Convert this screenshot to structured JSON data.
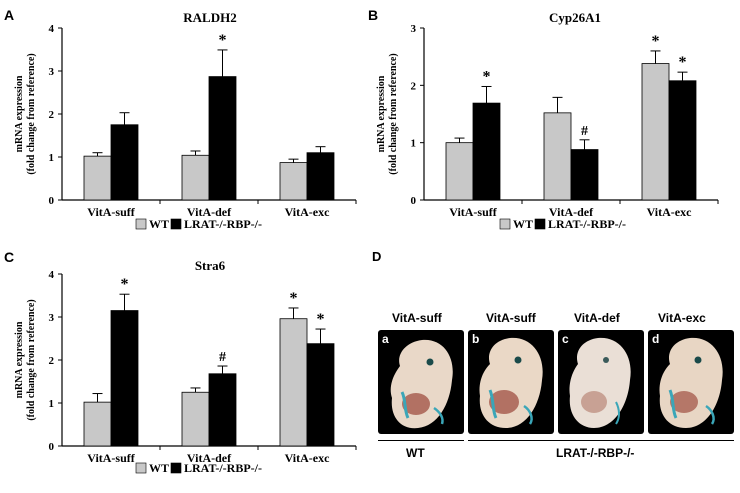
{
  "panels": [
    {
      "letter": "A"
    },
    {
      "letter": "B"
    },
    {
      "letter": "C"
    },
    {
      "letter": "D"
    }
  ],
  "chart_data": [
    {
      "type": "bar",
      "panel": "A",
      "title": "RALDH2",
      "ylabel": "mRNA expression",
      "ylabel2": "(fold change from reference)",
      "categories": [
        "VitA-suff",
        "VitA-def",
        "VitA-exc"
      ],
      "ylim": [
        0,
        4
      ],
      "yticks": [
        "0",
        "1",
        "2",
        "3",
        "4"
      ],
      "series": [
        {
          "name": "WT",
          "color": "#c8c8c8",
          "values": [
            1.02,
            1.04,
            0.87
          ],
          "errors": [
            0.08,
            0.1,
            0.08
          ],
          "marks": [
            "",
            "",
            ""
          ]
        },
        {
          "name": "LRAT-/-RBP-/-",
          "color": "#000000",
          "values": [
            1.75,
            2.87,
            1.1
          ],
          "errors": [
            0.28,
            0.62,
            0.14
          ],
          "marks": [
            "",
            "*",
            ""
          ]
        }
      ]
    },
    {
      "type": "bar",
      "panel": "B",
      "title": "Cyp26A1",
      "ylabel": "mRNA expression",
      "ylabel2": "(fold change from reference)",
      "categories": [
        "VitA-suff",
        "VitA-def",
        "VitA-exc"
      ],
      "ylim": [
        0,
        3
      ],
      "yticks": [
        "0",
        "1",
        "2",
        "3"
      ],
      "series": [
        {
          "name": "WT",
          "color": "#c8c8c8",
          "values": [
            1.0,
            1.52,
            2.38
          ],
          "errors": [
            0.08,
            0.27,
            0.22
          ],
          "marks": [
            "",
            "",
            "*"
          ]
        },
        {
          "name": "LRAT-/-RBP-/-",
          "color": "#000000",
          "values": [
            1.69,
            0.88,
            2.08
          ],
          "errors": [
            0.29,
            0.17,
            0.15
          ],
          "marks": [
            "*",
            "#",
            "*"
          ]
        }
      ]
    },
    {
      "type": "bar",
      "panel": "C",
      "title": "Stra6",
      "ylabel": "mRNA expression",
      "ylabel2": "(fold change from reference)",
      "categories": [
        "VitA-suff",
        "VitA-def",
        "VitA-exc"
      ],
      "ylim": [
        0,
        4
      ],
      "yticks": [
        "0",
        "1",
        "2",
        "3",
        "4"
      ],
      "series": [
        {
          "name": "WT",
          "color": "#c8c8c8",
          "values": [
            1.02,
            1.25,
            2.96
          ],
          "errors": [
            0.2,
            0.1,
            0.25
          ],
          "marks": [
            "",
            "",
            "*"
          ]
        },
        {
          "name": "LRAT-/-RBP-/-",
          "color": "#000000",
          "values": [
            3.15,
            1.68,
            2.38
          ],
          "errors": [
            0.38,
            0.18,
            0.34
          ],
          "marks": [
            "*",
            "#",
            "*"
          ]
        }
      ]
    }
  ],
  "photos": {
    "labels": [
      "VitA-suff",
      "VitA-suff",
      "VitA-def",
      "VitA-exc"
    ],
    "letters": [
      "a",
      "b",
      "c",
      "d"
    ],
    "groups": [
      "WT",
      "LRAT-/-RBP-/-"
    ]
  }
}
